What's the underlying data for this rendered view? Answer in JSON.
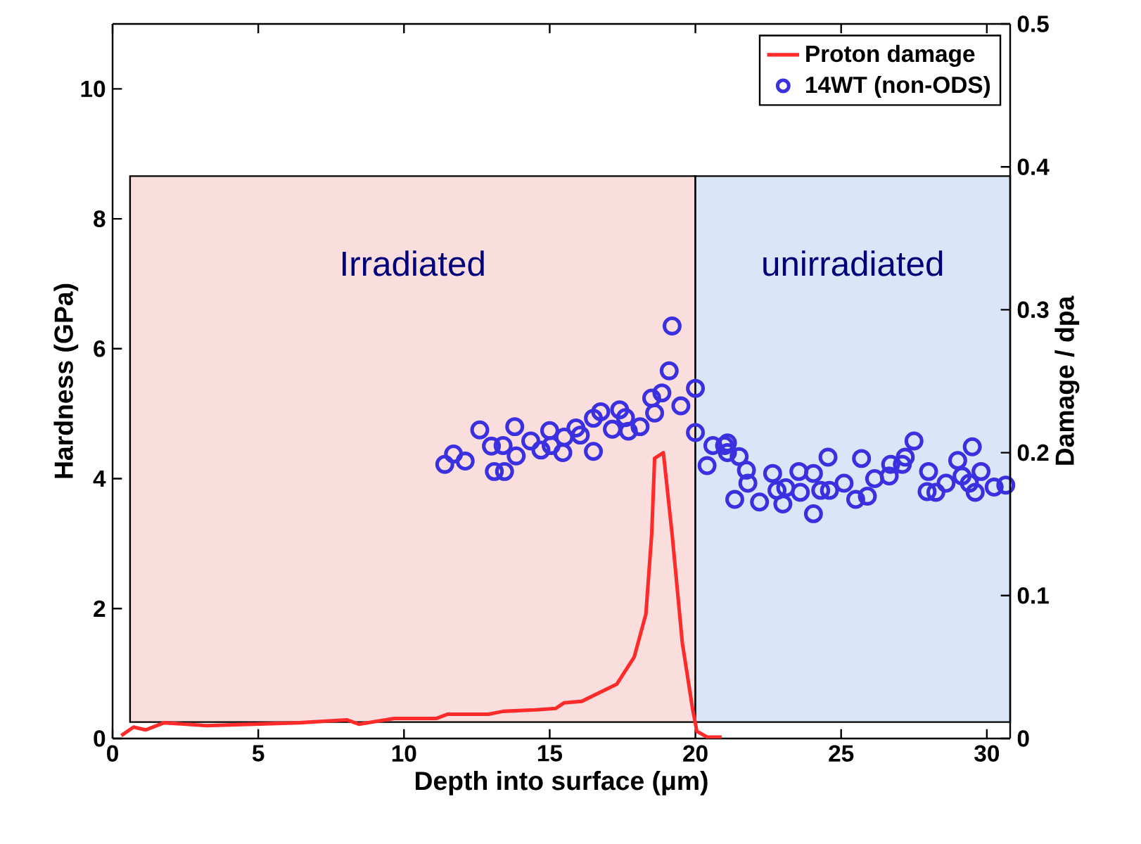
{
  "chart_data": {
    "type": "scatter",
    "xlabel": "Depth into surface (μm)",
    "ylabel": "Hardness (GPa)",
    "y2label": "Damage / dpa",
    "xlim": [
      0,
      30.8
    ],
    "ylim": [
      0,
      11
    ],
    "y2lim": [
      0,
      0.5
    ],
    "xticks": [
      0,
      5,
      10,
      15,
      20,
      25,
      30
    ],
    "yticks": [
      0,
      2,
      4,
      6,
      8,
      10
    ],
    "y2ticks": [
      0,
      0.1,
      0.2,
      0.3,
      0.4,
      0.5
    ],
    "legend": "top right",
    "bands": [
      {
        "axis": "x",
        "from": 0.6,
        "to": 20,
        "label": "Irradiated",
        "color": "#fadddd"
      },
      {
        "axis": "x",
        "from": 20,
        "to": 30.8,
        "label": "unirradiated",
        "color": "#dae6f8"
      }
    ],
    "series": [
      {
        "name": "Proton damage",
        "type": "line",
        "axis": "y2",
        "color": "#ff2a2a",
        "marker": "none",
        "line_style": "solid",
        "x": [
          0.3,
          0.72,
          1.13,
          1.77,
          3.22,
          4.83,
          6.4,
          8.05,
          8.45,
          9.66,
          11.1,
          11.5,
          12.9,
          13.4,
          14.5,
          15.2,
          15.5,
          16.1,
          16.7,
          17.3,
          17.9,
          18.3,
          18.5,
          18.6,
          18.9,
          19.2,
          19.55,
          19.9,
          20.05,
          20.4,
          20.9
        ],
        "values": [
          0.002,
          0.008,
          0.006,
          0.011,
          0.009,
          0.01,
          0.011,
          0.013,
          0.01,
          0.014,
          0.014,
          0.017,
          0.017,
          0.019,
          0.02,
          0.021,
          0.025,
          0.026,
          0.032,
          0.038,
          0.057,
          0.087,
          0.143,
          0.196,
          0.2,
          0.143,
          0.067,
          0.021,
          0.005,
          0.001,
          0.001
        ]
      },
      {
        "name": "14WT (non-ODS)",
        "color": "#3a30e0",
        "marker": "circle",
        "x": [
          11.4,
          11.7,
          12.1,
          12.6,
          13.0,
          13.1,
          13.45,
          13.4,
          13.8,
          13.85,
          14.35,
          14.7,
          15.0,
          15.05,
          15.45,
          15.5,
          15.9,
          16.05,
          16.5,
          16.5,
          16.75,
          17.15,
          17.4,
          17.6,
          17.7,
          18.1,
          18.5,
          18.6,
          18.85,
          19.1,
          19.2,
          19.5,
          20.0,
          20.0,
          20.4,
          20.6,
          21.0,
          21.1,
          21.1,
          21.5,
          21.35,
          21.75,
          21.8,
          22.2,
          22.65,
          22.8,
          23.0,
          23.1,
          23.55,
          23.6,
          24.05,
          24.05,
          24.3,
          24.55,
          24.6,
          25.1,
          25.5,
          25.7,
          25.9,
          26.15,
          26.65,
          26.7,
          27.1,
          27.2,
          27.5,
          28.0,
          27.95,
          28.25,
          28.6,
          29.0,
          29.15,
          29.4,
          29.5,
          29.6,
          29.8,
          30.25,
          30.65
        ],
        "values": [
          4.22,
          4.38,
          4.27,
          4.75,
          4.5,
          4.11,
          4.11,
          4.51,
          4.8,
          4.35,
          4.58,
          4.44,
          4.74,
          4.51,
          4.4,
          4.64,
          4.78,
          4.67,
          4.42,
          4.93,
          5.03,
          4.76,
          5.06,
          4.94,
          4.73,
          4.8,
          5.24,
          5.01,
          5.32,
          5.66,
          6.35,
          5.12,
          5.39,
          4.71,
          4.2,
          4.51,
          4.51,
          4.55,
          4.4,
          4.34,
          3.68,
          4.13,
          3.93,
          3.64,
          4.08,
          3.82,
          3.61,
          3.86,
          4.11,
          3.79,
          4.08,
          3.46,
          3.82,
          4.33,
          3.82,
          3.93,
          3.68,
          4.31,
          3.73,
          4.0,
          4.04,
          4.22,
          4.22,
          4.33,
          4.58,
          4.11,
          3.8,
          3.79,
          3.93,
          4.28,
          4.04,
          3.93,
          4.49,
          3.79,
          4.11,
          3.87,
          3.9
        ]
      }
    ]
  }
}
